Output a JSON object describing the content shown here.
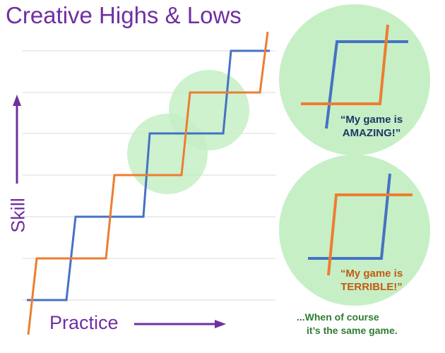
{
  "title": "Creative Highs & Lows",
  "y_axis_label": "Skill",
  "x_axis_label": "Practice",
  "colors": {
    "title": "#7030a0",
    "arrows": "#7030a0",
    "blue_line": "#4472c4",
    "orange_line": "#ed7d31",
    "highlight_circle": "#c6efc6",
    "gridline": "#d9d9d9",
    "quote_blue": "#1f3864",
    "quote_orange": "#c55a11",
    "footer": "#2e7d32"
  },
  "callouts": [
    {
      "text_line1": "“My game is",
      "text_line2": "AMAZING!”"
    },
    {
      "text_line1": "“My game is",
      "text_line2": "TERRIBLE!”"
    }
  ],
  "footer": {
    "line1": "...When of course",
    "line2": "it’s the same game."
  }
}
